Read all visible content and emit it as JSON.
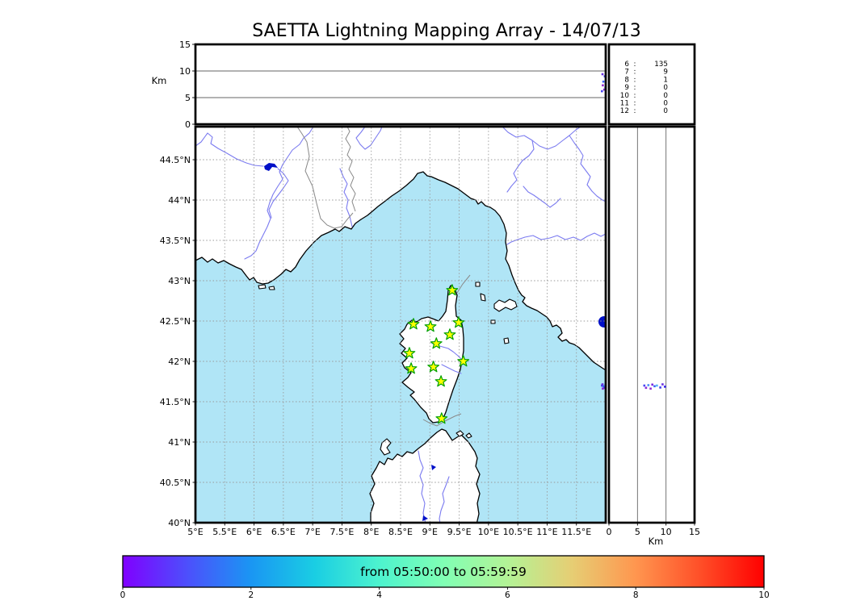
{
  "chart_data": {
    "type": "scatter",
    "title": "SAETTA Lightning Mapping Array - 14/07/13",
    "panels": [
      {
        "id": "altitude_vs_longitude",
        "ylabel": "Km",
        "ylim": [
          0,
          15
        ],
        "ytick_values": [
          0,
          5,
          10,
          15
        ],
        "ytick_labels": [
          "0",
          "5",
          "10",
          "15"
        ],
        "grid_y": [
          5,
          10
        ]
      },
      {
        "id": "map_longitude_latitude",
        "xlim": [
          5,
          12
        ],
        "ylim": [
          40,
          44.91
        ],
        "xtick_values": [
          5,
          5.5,
          6,
          6.5,
          7,
          7.5,
          8,
          8.5,
          9,
          9.5,
          10,
          10.5,
          11,
          11.5
        ],
        "xtick_labels": [
          "5°E",
          "5.5°E",
          "6°E",
          "6.5°E",
          "7°E",
          "7.5°E",
          "8°E",
          "8.5°E",
          "9°E",
          "9.5°E",
          "10°E",
          "10.5°E",
          "11°E",
          "11.5°E"
        ],
        "ytick_values": [
          40,
          40.5,
          41,
          41.5,
          42,
          42.5,
          43,
          43.5,
          44,
          44.5
        ],
        "ytick_labels": [
          "40°N",
          "40.5°N",
          "41°N",
          "41.5°N",
          "42°N",
          "42.5°N",
          "43°N",
          "43.5°N",
          "44°N",
          "44.5°N"
        ],
        "grid": "dashed 0.5deg"
      },
      {
        "id": "latitude_vs_altitude",
        "xlabel": "Km",
        "xlim": [
          0,
          15
        ],
        "xtick_values": [
          0,
          5,
          10,
          15
        ],
        "xtick_labels": [
          "0",
          "5",
          "10",
          "15"
        ],
        "grid_x": [
          5,
          10
        ]
      }
    ],
    "side_counts": [
      {
        "bin": "6",
        "count": 135,
        "highlight": false
      },
      {
        "bin": "7",
        "count": 9,
        "highlight": true
      },
      {
        "bin": "8",
        "count": 1,
        "highlight": false
      },
      {
        "bin": "9",
        "count": 0,
        "highlight": false
      },
      {
        "bin": "10",
        "count": 0,
        "highlight": false
      },
      {
        "bin": "11",
        "count": 0,
        "highlight": false
      },
      {
        "bin": "12",
        "count": 0,
        "highlight": false
      }
    ],
    "stations_lon_lat": [
      [
        9.38,
        42.88
      ],
      [
        8.72,
        42.46
      ],
      [
        9.01,
        42.43
      ],
      [
        9.49,
        42.48
      ],
      [
        9.34,
        42.33
      ],
      [
        9.11,
        42.22
      ],
      [
        8.65,
        42.1
      ],
      [
        9.57,
        42.0
      ],
      [
        8.68,
        41.91
      ],
      [
        9.06,
        41.93
      ],
      [
        9.19,
        41.75
      ],
      [
        9.2,
        41.29
      ]
    ],
    "sources": [
      {
        "lon": 11.935,
        "lat": 41.7,
        "alt_km": 6.2,
        "color": "#4a46f2"
      },
      {
        "lon": 11.975,
        "lat": 41.672,
        "alt_km": 6.5,
        "color": "#8c2ad8"
      },
      {
        "lon": 11.995,
        "lat": 41.705,
        "alt_km": 6.9,
        "color": "#4a90f6"
      },
      {
        "lon": 11.95,
        "lat": 41.662,
        "alt_km": 7.3,
        "color": "#9328d2"
      },
      {
        "lon": 12.015,
        "lat": 41.712,
        "alt_km": 7.6,
        "color": "#7a2ae2"
      },
      {
        "lon": 11.96,
        "lat": 41.692,
        "alt_km": 8.0,
        "color": "#3c64f6"
      },
      {
        "lon": 12.035,
        "lat": 41.7,
        "alt_km": 8.4,
        "color": "#52b4f2"
      },
      {
        "lon": 11.985,
        "lat": 41.676,
        "alt_km": 9.0,
        "color": "#4040ee"
      },
      {
        "lon": 11.945,
        "lat": 41.715,
        "alt_km": 9.4,
        "color": "#6a30e0"
      },
      {
        "lon": 12.025,
        "lat": 41.686,
        "alt_km": 9.8,
        "color": "#3a28ee"
      }
    ],
    "colorbar": {
      "label": "from 05:50:00 to 05:59:59",
      "range": [
        0,
        10
      ],
      "tick_values": [
        0,
        2,
        4,
        6,
        8,
        10
      ],
      "tick_labels": [
        "0",
        "2",
        "4",
        "6",
        "8",
        "10"
      ],
      "gradient": [
        "#8000ff",
        "#4d4ffc",
        "#1a96f3",
        "#1acee3",
        "#4df3ce",
        "#80ffb4",
        "#b3f396",
        "#e6ce74",
        "#ff964f",
        "#ff4f28",
        "#ff0000"
      ]
    },
    "colors": {
      "sea": "#b0e5f6",
      "land": "#ffffff",
      "coast": "#000000",
      "river": "#7b7bf0",
      "region_border": "#888888",
      "lake": "#0010c8",
      "grid": "#999999",
      "station_fill": "#ffff00",
      "station_stroke": "#00a000",
      "highlight": "#e00000"
    }
  }
}
